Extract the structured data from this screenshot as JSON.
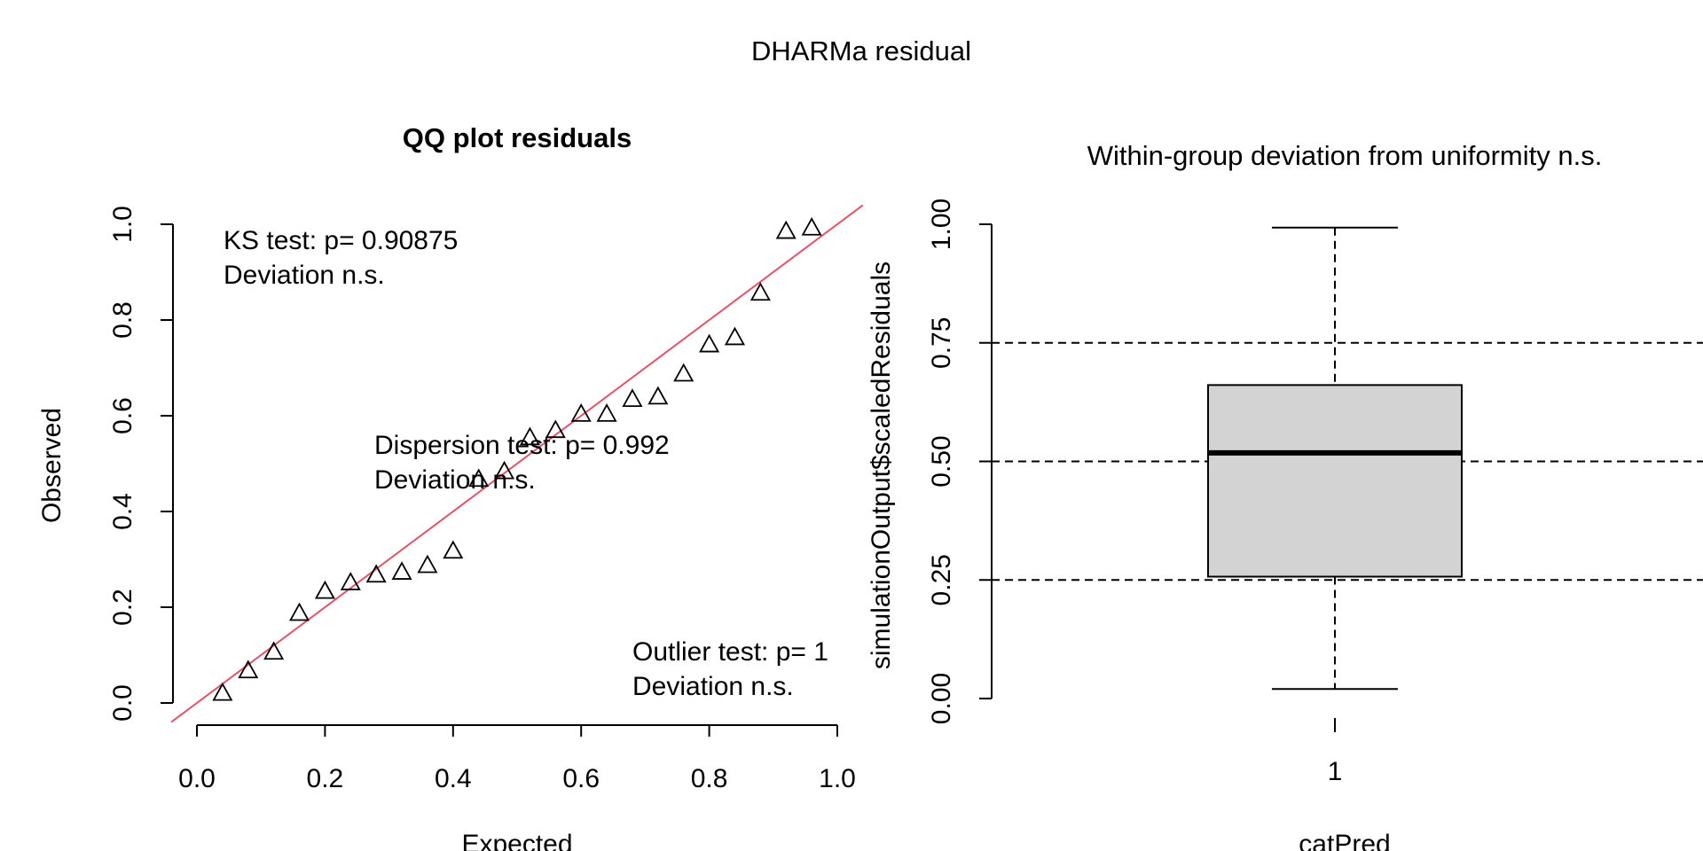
{
  "figure": {
    "title": "DHARMa residual"
  },
  "chart_data": [
    {
      "type": "scatter",
      "title": "QQ plot residuals",
      "xlabel": "Expected",
      "ylabel": "Observed",
      "xlim": [
        0,
        1
      ],
      "ylim": [
        0,
        1
      ],
      "xticks": [
        "0.0",
        "0.2",
        "0.4",
        "0.6",
        "0.8",
        "1.0"
      ],
      "yticks": [
        "0.0",
        "0.2",
        "0.4",
        "0.6",
        "0.8",
        "1.0"
      ],
      "marker": "open-triangle",
      "reference_line": {
        "slope": 1,
        "intercept": 0,
        "color": "#df536b"
      },
      "points": {
        "x": [
          0.04,
          0.08,
          0.12,
          0.16,
          0.2,
          0.24,
          0.28,
          0.32,
          0.36,
          0.4,
          0.44,
          0.48,
          0.52,
          0.56,
          0.6,
          0.64,
          0.68,
          0.72,
          0.76,
          0.8,
          0.84,
          0.88,
          0.92,
          0.96
        ],
        "y": [
          0.021,
          0.068,
          0.107,
          0.188,
          0.234,
          0.252,
          0.268,
          0.274,
          0.288,
          0.318,
          0.468,
          0.484,
          0.555,
          0.57,
          0.604,
          0.604,
          0.635,
          0.64,
          0.688,
          0.749,
          0.764,
          0.857,
          0.986,
          0.993
        ]
      },
      "annotations": [
        {
          "lines": [
            "KS test: p= 0.90875",
            "Deviation  n.s."
          ],
          "color": "#000000"
        },
        {
          "lines": [
            "Dispersion test: p= 0.992",
            "Deviation  n.s."
          ],
          "color": "#000000"
        },
        {
          "lines": [
            "Outlier test: p= 1",
            "Deviation  n.s."
          ],
          "color": "#000000"
        }
      ]
    },
    {
      "type": "box",
      "title": "Within-group deviation from uniformity n.s.",
      "xlabel": "catPred",
      "ylabel": "simulationOutput$scaledResiduals",
      "ylim": [
        0,
        1
      ],
      "yticks": [
        "0.00",
        "0.25",
        "0.50",
        "0.75",
        "1.00"
      ],
      "categories": [
        "1"
      ],
      "box": {
        "min": 0.02,
        "q1": 0.257,
        "median": 0.518,
        "q3": 0.661,
        "max": 0.993
      },
      "box_fill": "#d3d3d3",
      "reference_lines": [
        0.25,
        0.5,
        0.75
      ]
    }
  ]
}
